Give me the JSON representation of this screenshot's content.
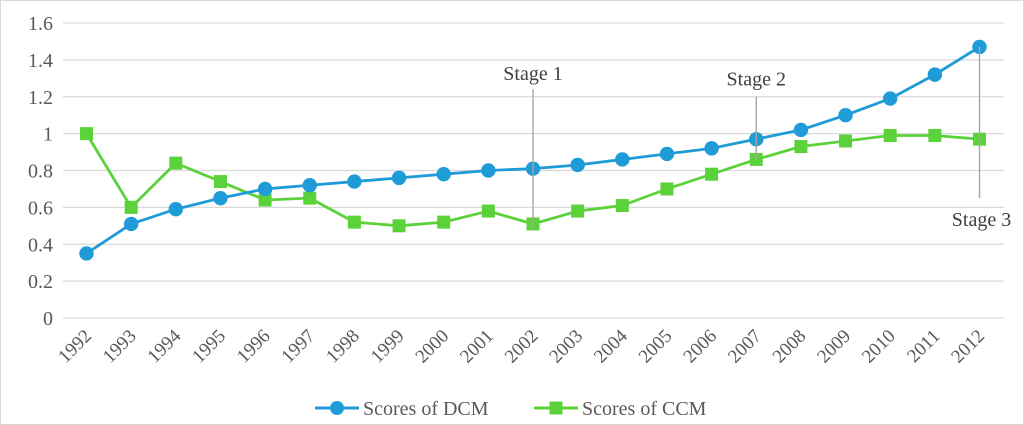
{
  "chart_data": {
    "type": "line",
    "categories": [
      "1992",
      "1993",
      "1994",
      "1995",
      "1996",
      "1997",
      "1998",
      "1999",
      "2000",
      "2001",
      "2002",
      "2003",
      "2004",
      "2005",
      "2006",
      "2007",
      "2008",
      "2009",
      "2010",
      "2011",
      "2012"
    ],
    "series": [
      {
        "name": "Scores of DCM",
        "marker": "circle",
        "color": "#1F9BD7",
        "values": [
          0.35,
          0.51,
          0.59,
          0.65,
          0.7,
          0.72,
          0.74,
          0.76,
          0.78,
          0.8,
          0.81,
          0.83,
          0.86,
          0.89,
          0.92,
          0.97,
          1.02,
          1.1,
          1.19,
          1.32,
          1.47
        ]
      },
      {
        "name": "Scores of CCM",
        "marker": "square",
        "color": "#5CD23A",
        "values": [
          1.0,
          0.6,
          0.84,
          0.74,
          0.64,
          0.65,
          0.52,
          0.5,
          0.52,
          0.58,
          0.51,
          0.58,
          0.61,
          0.7,
          0.78,
          0.86,
          0.93,
          0.96,
          0.99,
          0.99,
          0.97
        ]
      }
    ],
    "ylim": [
      0,
      1.6
    ],
    "ytick_labels": [
      "0",
      "0.2",
      "0.4",
      "0.6",
      "0.8",
      "1",
      "1.2",
      "1.4",
      "1.6"
    ],
    "grid": true,
    "legend_position": "bottom",
    "annotations": [
      {
        "label": "Stage 1",
        "category": "2002",
        "line_from": 1.24,
        "line_to": 0.48,
        "label_y": 1.29,
        "label_side": "above"
      },
      {
        "label": "Stage 2",
        "category": "2007",
        "line_from": 1.2,
        "line_to": 0.86,
        "label_y": 1.26,
        "label_side": "above"
      },
      {
        "label": "Stage 3",
        "category": "2012",
        "line_from": 1.47,
        "line_to": 0.65,
        "label_y": 0.5,
        "label_side": "below"
      }
    ]
  },
  "colors": {
    "grid": "#D9D9D9",
    "axis_text": "#595959",
    "annotation_line": "#A6A6A6",
    "annotation_text": "#404040",
    "frame_border": "#D9D9D9"
  }
}
